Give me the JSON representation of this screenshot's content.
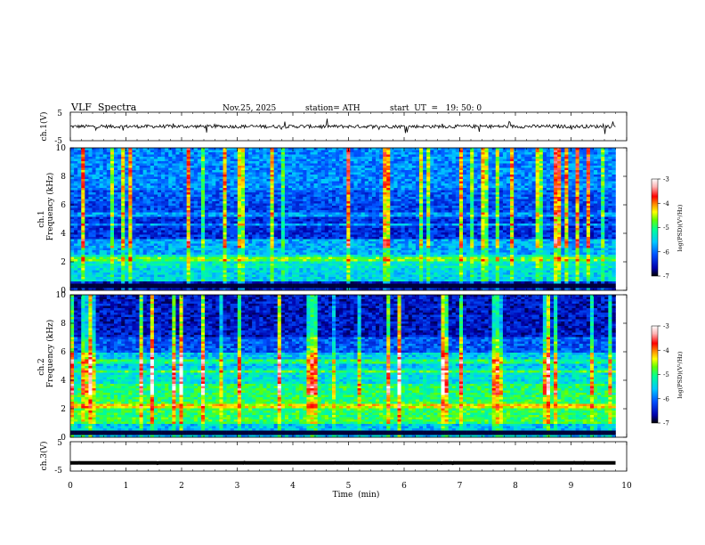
{
  "header": {
    "title": "VLF  Spectra",
    "date": "Nov.25, 2025",
    "station": "station= ATH",
    "start_ut": "start  UT  =   19: 50: 0"
  },
  "chart_data": [
    {
      "type": "line",
      "panel": "ch1-waveform",
      "ylabel": "ch.1(V)",
      "ylim": [
        -5,
        5
      ],
      "yticks": [
        "5",
        "-5"
      ],
      "xlim": [
        0,
        10
      ],
      "data_extent_x": [
        0,
        9.8
      ],
      "baseline": 0,
      "grid": false
    },
    {
      "type": "heatmap",
      "panel": "ch1-spectrogram",
      "ylabel_channel": "ch.1",
      "ylabel": "Frequency (kHz)",
      "ylim": [
        0,
        10
      ],
      "yticks": [
        "0",
        "2",
        "4",
        "6",
        "8",
        "10"
      ],
      "xlim": [
        0,
        10
      ],
      "data_extent_x": [
        0,
        9.8
      ],
      "colorbar": {
        "label": "log(PSD)(V²/Hz)",
        "range": [
          -7,
          -3
        ],
        "ticks": [
          "-3",
          "-4",
          "-5",
          "-6",
          "-7"
        ],
        "colors": [
          "#000033",
          "#0000cc",
          "#0050ff",
          "#00c8ff",
          "#00ff96",
          "#64ff00",
          "#ffff00",
          "#ff8c00",
          "#ff0000",
          "#ffc8c8",
          "#ffffff"
        ]
      }
    },
    {
      "type": "heatmap",
      "panel": "ch2-spectrogram",
      "ylabel_channel": "ch.2",
      "ylabel": "Frequency (kHz)",
      "ylim": [
        0,
        10
      ],
      "yticks": [
        "0",
        "2",
        "4",
        "6",
        "8",
        "10"
      ],
      "xlim": [
        0,
        10
      ],
      "data_extent_x": [
        0,
        9.8
      ],
      "colorbar": {
        "label": "log(PSD)(V²/Hz)",
        "range": [
          -7,
          -3
        ],
        "ticks": [
          "-3",
          "-4",
          "-5",
          "-6",
          "-7"
        ]
      }
    },
    {
      "type": "line",
      "panel": "ch3-waveform",
      "ylabel": "ch.3(V)",
      "ylim": [
        -5,
        5
      ],
      "yticks": [
        "5",
        "-5"
      ],
      "xlim": [
        0,
        10
      ],
      "data_extent_x": [
        0,
        9.8
      ],
      "baseline": -2.2,
      "grid": false
    }
  ],
  "x_axis": {
    "label": "Time  (min)",
    "ticks": [
      "0",
      "1",
      "2",
      "3",
      "4",
      "5",
      "6",
      "7",
      "8",
      "9",
      "10"
    ]
  }
}
